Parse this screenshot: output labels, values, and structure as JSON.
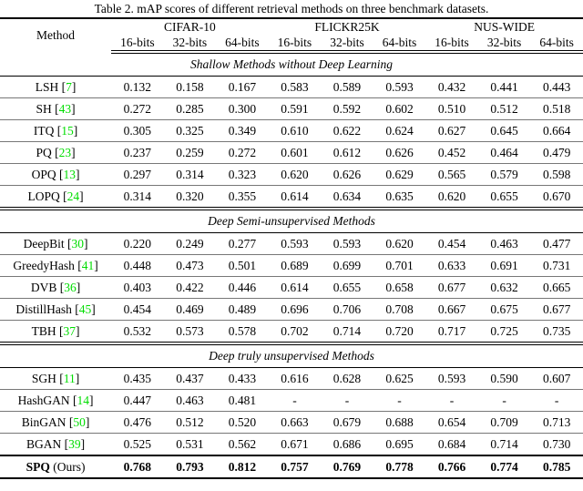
{
  "caption": "Table 2. mAP scores of different retrieval methods on three benchmark datasets.",
  "table": {
    "method_header": "Method",
    "groups": [
      "CIFAR-10",
      "FLICKR25K",
      "NUS-WIDE"
    ],
    "bit_labels": [
      "16-bits",
      "32-bits",
      "64-bits"
    ],
    "colors": {
      "citation_green": "#00dd00"
    },
    "sections": [
      {
        "title": "Shallow Methods without Deep Learning",
        "rows": [
          {
            "method": "LSH",
            "cite": "7",
            "suffix": "",
            "bold": false,
            "values": [
              "0.132",
              "0.158",
              "0.167",
              "0.583",
              "0.589",
              "0.593",
              "0.432",
              "0.441",
              "0.443"
            ]
          },
          {
            "method": "SH",
            "cite": "43",
            "suffix": "",
            "bold": false,
            "values": [
              "0.272",
              "0.285",
              "0.300",
              "0.591",
              "0.592",
              "0.602",
              "0.510",
              "0.512",
              "0.518"
            ]
          },
          {
            "method": "ITQ",
            "cite": "15",
            "suffix": "",
            "bold": false,
            "values": [
              "0.305",
              "0.325",
              "0.349",
              "0.610",
              "0.622",
              "0.624",
              "0.627",
              "0.645",
              "0.664"
            ]
          },
          {
            "method": "PQ",
            "cite": "23",
            "suffix": "",
            "bold": false,
            "values": [
              "0.237",
              "0.259",
              "0.272",
              "0.601",
              "0.612",
              "0.626",
              "0.452",
              "0.464",
              "0.479"
            ]
          },
          {
            "method": "OPQ",
            "cite": "13",
            "suffix": "",
            "bold": false,
            "values": [
              "0.297",
              "0.314",
              "0.323",
              "0.620",
              "0.626",
              "0.629",
              "0.565",
              "0.579",
              "0.598"
            ]
          },
          {
            "method": "LOPQ",
            "cite": "24",
            "suffix": "",
            "bold": false,
            "values": [
              "0.314",
              "0.320",
              "0.355",
              "0.614",
              "0.634",
              "0.635",
              "0.620",
              "0.655",
              "0.670"
            ]
          }
        ]
      },
      {
        "title": "Deep Semi-unsupervised Methods",
        "rows": [
          {
            "method": "DeepBit",
            "cite": "30",
            "suffix": "",
            "bold": false,
            "values": [
              "0.220",
              "0.249",
              "0.277",
              "0.593",
              "0.593",
              "0.620",
              "0.454",
              "0.463",
              "0.477"
            ]
          },
          {
            "method": "GreedyHash",
            "cite": "41",
            "suffix": "",
            "bold": false,
            "values": [
              "0.448",
              "0.473",
              "0.501",
              "0.689",
              "0.699",
              "0.701",
              "0.633",
              "0.691",
              "0.731"
            ]
          },
          {
            "method": "DVB",
            "cite": "36",
            "suffix": "",
            "bold": false,
            "values": [
              "0.403",
              "0.422",
              "0.446",
              "0.614",
              "0.655",
              "0.658",
              "0.677",
              "0.632",
              "0.665"
            ]
          },
          {
            "method": "DistillHash",
            "cite": "45",
            "suffix": "",
            "bold": false,
            "values": [
              "0.454",
              "0.469",
              "0.489",
              "0.696",
              "0.706",
              "0.708",
              "0.667",
              "0.675",
              "0.677"
            ]
          },
          {
            "method": "TBH",
            "cite": "37",
            "suffix": "",
            "bold": false,
            "values": [
              "0.532",
              "0.573",
              "0.578",
              "0.702",
              "0.714",
              "0.720",
              "0.717",
              "0.725",
              "0.735"
            ]
          }
        ]
      },
      {
        "title": "Deep truly unsupervised Methods",
        "rows": [
          {
            "method": "SGH",
            "cite": "11",
            "suffix": "",
            "bold": false,
            "values": [
              "0.435",
              "0.437",
              "0.433",
              "0.616",
              "0.628",
              "0.625",
              "0.593",
              "0.590",
              "0.607"
            ]
          },
          {
            "method": "HashGAN",
            "cite": "14",
            "suffix": "",
            "bold": false,
            "values": [
              "0.447",
              "0.463",
              "0.481",
              "-",
              "-",
              "-",
              "-",
              "-",
              "-"
            ]
          },
          {
            "method": "BinGAN",
            "cite": "50",
            "suffix": "",
            "bold": false,
            "values": [
              "0.476",
              "0.512",
              "0.520",
              "0.663",
              "0.679",
              "0.688",
              "0.654",
              "0.709",
              "0.713"
            ]
          },
          {
            "method": "BGAN",
            "cite": "39",
            "suffix": "",
            "bold": false,
            "values": [
              "0.525",
              "0.531",
              "0.562",
              "0.671",
              "0.686",
              "0.695",
              "0.684",
              "0.714",
              "0.730"
            ]
          },
          {
            "method": "SPQ",
            "cite": null,
            "suffix": " (Ours)",
            "bold": true,
            "values": [
              "0.768",
              "0.793",
              "0.812",
              "0.757",
              "0.769",
              "0.778",
              "0.766",
              "0.774",
              "0.785"
            ]
          }
        ]
      }
    ]
  }
}
